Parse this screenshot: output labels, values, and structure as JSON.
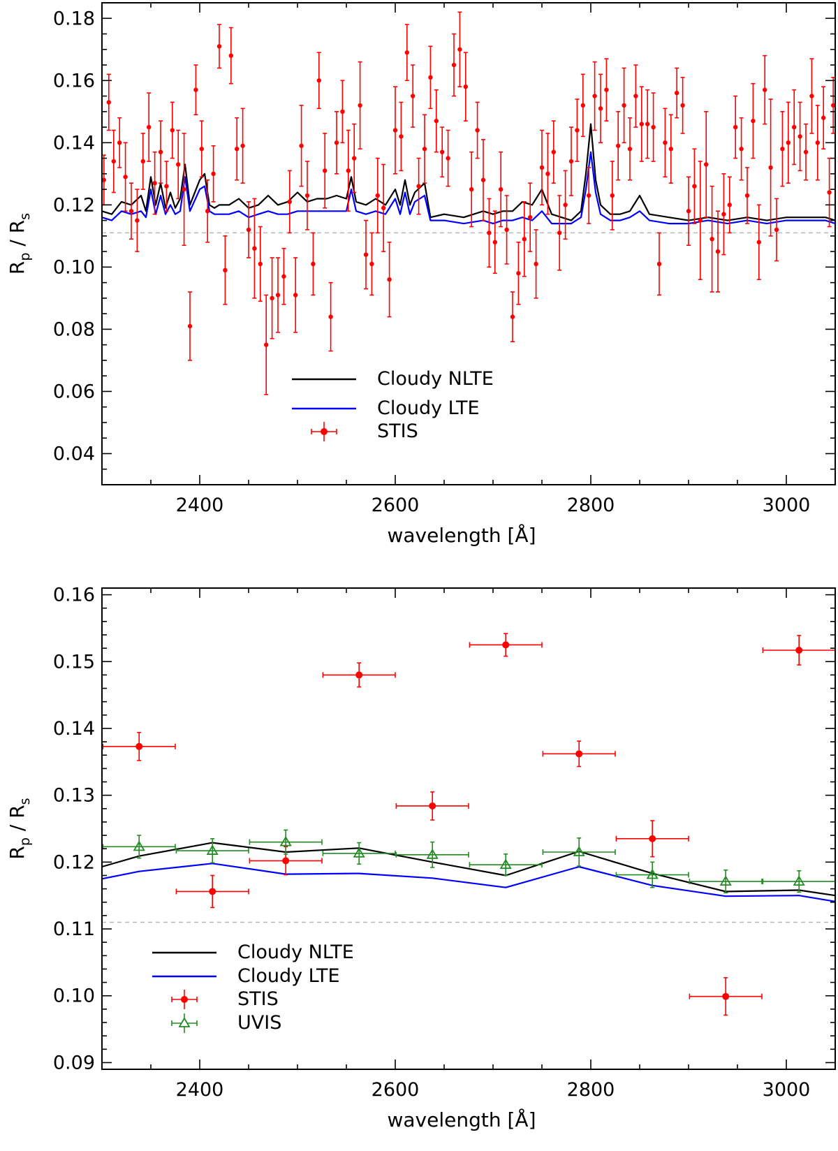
{
  "chart_data": [
    {
      "type": "scatter",
      "xlabel": "wavelength [Å]",
      "ylabel": {
        "main": "R",
        "sub1": "p",
        "sep": " / R",
        "sub2": "s"
      },
      "xlim": [
        2300,
        3050
      ],
      "ylim": [
        0.03,
        0.185
      ],
      "xticks": [
        2400,
        2600,
        2800,
        3000
      ],
      "xtick_labels": [
        "2400",
        "2600",
        "2800",
        "3000"
      ],
      "yticks": [
        0.04,
        0.06,
        0.08,
        0.1,
        0.12,
        0.14,
        0.16,
        0.18
      ],
      "ytick_labels": [
        "0.04",
        "0.06",
        "0.08",
        "0.10",
        "0.12",
        "0.14",
        "0.16",
        "0.18"
      ],
      "reference_line": 0.111,
      "legend": [
        "Cloudy NLTE",
        "Cloudy LTE",
        "STIS"
      ],
      "series": [
        {
          "name": "Cloudy NLTE",
          "kind": "line",
          "color": "#000000",
          "x": [
            2300,
            2310,
            2320,
            2330,
            2340,
            2345,
            2350,
            2355,
            2360,
            2365,
            2370,
            2375,
            2380,
            2385,
            2390,
            2400,
            2405,
            2410,
            2415,
            2420,
            2430,
            2440,
            2450,
            2460,
            2470,
            2480,
            2490,
            2500,
            2510,
            2520,
            2530,
            2540,
            2550,
            2555,
            2560,
            2570,
            2580,
            2590,
            2600,
            2605,
            2610,
            2615,
            2620,
            2630,
            2636,
            2650,
            2670,
            2690,
            2700,
            2710,
            2720,
            2730,
            2740,
            2750,
            2760,
            2780,
            2790,
            2795,
            2800,
            2805,
            2810,
            2820,
            2830,
            2840,
            2850,
            2860,
            2880,
            2900,
            2920,
            2940,
            2960,
            2980,
            3000,
            3020,
            3040,
            3050
          ],
          "y": [
            0.118,
            0.117,
            0.121,
            0.12,
            0.123,
            0.118,
            0.129,
            0.12,
            0.127,
            0.119,
            0.124,
            0.119,
            0.122,
            0.133,
            0.12,
            0.128,
            0.13,
            0.12,
            0.119,
            0.12,
            0.12,
            0.122,
            0.119,
            0.12,
            0.123,
            0.12,
            0.121,
            0.124,
            0.121,
            0.122,
            0.122,
            0.123,
            0.122,
            0.129,
            0.121,
            0.12,
            0.122,
            0.12,
            0.125,
            0.12,
            0.128,
            0.12,
            0.124,
            0.127,
            0.116,
            0.117,
            0.116,
            0.118,
            0.117,
            0.118,
            0.118,
            0.121,
            0.12,
            0.125,
            0.117,
            0.115,
            0.118,
            0.13,
            0.146,
            0.128,
            0.12,
            0.117,
            0.117,
            0.118,
            0.123,
            0.117,
            0.116,
            0.115,
            0.116,
            0.115,
            0.116,
            0.115,
            0.116,
            0.116,
            0.116,
            0.115
          ]
        },
        {
          "name": "Cloudy LTE",
          "kind": "line",
          "color": "#0000ff",
          "x": [
            2300,
            2310,
            2320,
            2330,
            2340,
            2345,
            2350,
            2355,
            2360,
            2365,
            2370,
            2375,
            2380,
            2385,
            2390,
            2400,
            2405,
            2410,
            2415,
            2420,
            2430,
            2440,
            2450,
            2460,
            2470,
            2480,
            2490,
            2500,
            2510,
            2520,
            2530,
            2540,
            2550,
            2555,
            2560,
            2570,
            2580,
            2590,
            2600,
            2605,
            2610,
            2615,
            2620,
            2630,
            2636,
            2650,
            2670,
            2690,
            2700,
            2710,
            2720,
            2730,
            2740,
            2750,
            2760,
            2780,
            2790,
            2795,
            2800,
            2805,
            2810,
            2820,
            2830,
            2840,
            2850,
            2860,
            2880,
            2900,
            2920,
            2940,
            2960,
            2980,
            3000,
            3020,
            3040,
            3050
          ],
          "y": [
            0.116,
            0.115,
            0.118,
            0.117,
            0.118,
            0.116,
            0.125,
            0.117,
            0.123,
            0.117,
            0.12,
            0.117,
            0.118,
            0.129,
            0.118,
            0.125,
            0.126,
            0.118,
            0.117,
            0.117,
            0.117,
            0.118,
            0.116,
            0.117,
            0.118,
            0.117,
            0.117,
            0.118,
            0.118,
            0.118,
            0.118,
            0.118,
            0.118,
            0.125,
            0.118,
            0.117,
            0.118,
            0.117,
            0.122,
            0.117,
            0.124,
            0.117,
            0.121,
            0.123,
            0.115,
            0.115,
            0.114,
            0.115,
            0.114,
            0.115,
            0.115,
            0.116,
            0.115,
            0.118,
            0.114,
            0.114,
            0.116,
            0.125,
            0.137,
            0.124,
            0.117,
            0.115,
            0.115,
            0.116,
            0.118,
            0.115,
            0.114,
            0.114,
            0.115,
            0.114,
            0.115,
            0.114,
            0.115,
            0.115,
            0.115,
            0.114
          ]
        },
        {
          "name": "STIS",
          "kind": "points",
          "color": "#ff0000",
          "x": [
            2302,
            2307,
            2312,
            2318,
            2324,
            2330,
            2336,
            2342,
            2348,
            2354,
            2360,
            2366,
            2372,
            2378,
            2384,
            2390,
            2396,
            2402,
            2408,
            2414,
            2420,
            2426,
            2432,
            2438,
            2444,
            2450,
            2456,
            2462,
            2468,
            2474,
            2480,
            2486,
            2492,
            2498,
            2504,
            2510,
            2516,
            2522,
            2528,
            2534,
            2540,
            2546,
            2552,
            2558,
            2564,
            2570,
            2576,
            2582,
            2588,
            2594,
            2600,
            2606,
            2612,
            2618,
            2624,
            2630,
            2636,
            2642,
            2648,
            2654,
            2660,
            2666,
            2672,
            2678,
            2684,
            2690,
            2696,
            2702,
            2708,
            2714,
            2720,
            2726,
            2732,
            2738,
            2744,
            2750,
            2756,
            2762,
            2768,
            2774,
            2780,
            2786,
            2792,
            2798,
            2804,
            2810,
            2816,
            2822,
            2828,
            2834,
            2840,
            2846,
            2852,
            2858,
            2864,
            2870,
            2876,
            2882,
            2888,
            2894,
            2900,
            2906,
            2912,
            2918,
            2924,
            2930,
            2936,
            2942,
            2948,
            2954,
            2960,
            2966,
            2972,
            2978,
            2984,
            2990,
            2996,
            3002,
            3008,
            3014,
            3020,
            3026,
            3032,
            3038,
            3044,
            3048
          ],
          "y": [
            0.128,
            0.153,
            0.134,
            0.14,
            0.129,
            0.118,
            0.115,
            0.134,
            0.145,
            0.127,
            0.137,
            0.126,
            0.144,
            0.133,
            0.125,
            0.081,
            0.157,
            0.138,
            0.118,
            0.13,
            0.171,
            0.099,
            0.168,
            0.138,
            0.139,
            0.112,
            0.106,
            0.101,
            0.075,
            0.09,
            0.091,
            0.097,
            0.121,
            0.091,
            0.139,
            0.123,
            0.101,
            0.16,
            0.131,
            0.084,
            0.14,
            0.15,
            0.131,
            0.135,
            0.152,
            0.104,
            0.101,
            0.123,
            0.119,
            0.096,
            0.144,
            0.142,
            0.169,
            0.155,
            0.126,
            0.138,
            0.161,
            0.147,
            0.137,
            0.135,
            0.165,
            0.17,
            0.158,
            0.125,
            0.144,
            0.128,
            0.111,
            0.108,
            0.125,
            0.112,
            0.084,
            0.098,
            0.109,
            0.116,
            0.101,
            0.132,
            0.13,
            0.137,
            0.111,
            0.12,
            0.134,
            0.144,
            0.152,
            0.123,
            0.155,
            0.151,
            0.157,
            0.123,
            0.139,
            0.152,
            0.138,
            0.155,
            0.146,
            0.146,
            0.145,
            0.101,
            0.14,
            0.138,
            0.156,
            0.152,
            0.118,
            0.126,
            0.115,
            0.133,
            0.109,
            0.105,
            0.117,
            0.12,
            0.145,
            0.138,
            0.123,
            0.147,
            0.108,
            0.157,
            0.132,
            0.112,
            0.138,
            0.14,
            0.145,
            0.142,
            0.137,
            0.155,
            0.14,
            0.148,
            0.124,
            0.152
          ],
          "err": [
            0.008,
            0.009,
            0.01,
            0.008,
            0.011,
            0.009,
            0.01,
            0.009,
            0.011,
            0.01,
            0.01,
            0.008,
            0.009,
            0.011,
            0.018,
            0.011,
            0.008,
            0.009,
            0.01,
            0.009,
            0.007,
            0.011,
            0.009,
            0.01,
            0.012,
            0.009,
            0.016,
            0.012,
            0.016,
            0.013,
            0.012,
            0.009,
            0.01,
            0.012,
            0.013,
            0.011,
            0.01,
            0.009,
            0.012,
            0.011,
            0.01,
            0.01,
            0.013,
            0.011,
            0.014,
            0.011,
            0.01,
            0.012,
            0.014,
            0.012,
            0.014,
            0.011,
            0.009,
            0.01,
            0.009,
            0.011,
            0.01,
            0.01,
            0.008,
            0.009,
            0.01,
            0.012,
            0.011,
            0.012,
            0.009,
            0.013,
            0.011,
            0.01,
            0.012,
            0.011,
            0.008,
            0.01,
            0.012,
            0.011,
            0.011,
            0.012,
            0.013,
            0.01,
            0.012,
            0.011,
            0.011,
            0.01,
            0.01,
            0.009,
            0.011,
            0.011,
            0.01,
            0.011,
            0.011,
            0.012,
            0.01,
            0.01,
            0.012,
            0.011,
            0.011,
            0.01,
            0.011,
            0.011,
            0.008,
            0.009,
            0.011,
            0.012,
            0.019,
            0.017,
            0.017,
            0.013,
            0.013,
            0.009,
            0.01,
            0.01,
            0.009,
            0.012,
            0.012,
            0.011,
            0.022,
            0.01,
            0.012,
            0.013,
            0.012,
            0.011,
            0.009,
            0.012,
            0.012,
            0.01,
            0.011,
            0.009
          ]
        }
      ]
    },
    {
      "type": "scatter",
      "xlabel": "wavelength [Å]",
      "ylabel": {
        "main": "R",
        "sub1": "p",
        "sep": " / R",
        "sub2": "s"
      },
      "xlim": [
        2300,
        3050
      ],
      "ylim": [
        0.089,
        0.161
      ],
      "xticks": [
        2400,
        2600,
        2800,
        3000
      ],
      "xtick_labels": [
        "2400",
        "2600",
        "2800",
        "3000"
      ],
      "yticks": [
        0.09,
        0.1,
        0.11,
        0.12,
        0.13,
        0.14,
        0.15,
        0.16
      ],
      "ytick_labels": [
        "0.09",
        "0.10",
        "0.11",
        "0.12",
        "0.13",
        "0.14",
        "0.15",
        "0.16"
      ],
      "reference_line": 0.111,
      "legend": [
        "Cloudy NLTE",
        "Cloudy LTE",
        "STIS",
        "UVIS"
      ],
      "series": [
        {
          "name": "Cloudy NLTE",
          "kind": "line",
          "color": "#000000",
          "x": [
            2300,
            2338,
            2413,
            2488,
            2563,
            2638,
            2713,
            2788,
            2863,
            2938,
            3013,
            3050
          ],
          "y": [
            0.1193,
            0.1209,
            0.1229,
            0.1215,
            0.1221,
            0.12,
            0.118,
            0.1216,
            0.1183,
            0.1156,
            0.1158,
            0.115
          ]
        },
        {
          "name": "Cloudy LTE",
          "kind": "line",
          "color": "#0000ff",
          "x": [
            2300,
            2338,
            2413,
            2488,
            2563,
            2638,
            2713,
            2788,
            2863,
            2938,
            3013,
            3050
          ],
          "y": [
            0.1175,
            0.1186,
            0.1198,
            0.1182,
            0.1183,
            0.1176,
            0.1162,
            0.1193,
            0.1165,
            0.1149,
            0.115,
            0.1141
          ]
        },
        {
          "name": "STIS",
          "kind": "points",
          "color": "#ff0000",
          "x": [
            2338,
            2413,
            2488,
            2563,
            2638,
            2713,
            2788,
            2863,
            2938,
            3013
          ],
          "y": [
            0.1373,
            0.1156,
            0.1202,
            0.148,
            0.1284,
            0.1525,
            0.1362,
            0.1235,
            0.0999,
            0.1517
          ],
          "xerr": [
            37,
            37,
            37,
            37,
            37,
            37,
            37,
            37,
            37,
            37
          ],
          "err": [
            0.0021,
            0.0024,
            0.0021,
            0.0018,
            0.0021,
            0.0017,
            0.0019,
            0.0027,
            0.0028,
            0.0022
          ]
        },
        {
          "name": "UVIS",
          "kind": "triangles",
          "color": "#228b22",
          "x": [
            2338,
            2413,
            2488,
            2563,
            2638,
            2713,
            2788,
            2863,
            2938,
            3013
          ],
          "y": [
            0.1223,
            0.1217,
            0.123,
            0.1213,
            0.1211,
            0.1196,
            0.1215,
            0.1181,
            0.1171,
            0.1171
          ],
          "xerr": [
            37,
            37,
            37,
            37,
            37,
            37,
            37,
            37,
            37,
            37
          ],
          "err": [
            0.0017,
            0.0018,
            0.0018,
            0.0016,
            0.0019,
            0.0016,
            0.0021,
            0.0019,
            0.0017,
            0.0016
          ]
        }
      ]
    }
  ]
}
